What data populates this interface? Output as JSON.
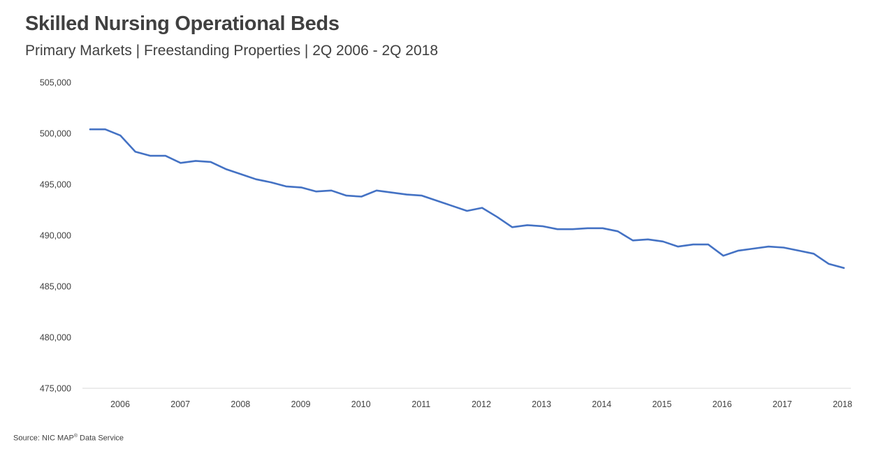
{
  "chart_data": {
    "type": "line",
    "title": "Skilled Nursing Operational Beds",
    "subtitle": "Primary Markets | Freestanding Properties | 2Q 2006 - 2Q 2018",
    "xlabel": "",
    "ylabel": "",
    "ylim": [
      475000,
      505000
    ],
    "yticks": [
      "475,000",
      "480,000",
      "485,000",
      "490,000",
      "495,000",
      "500,000",
      "505,000"
    ],
    "ytick_values": [
      475000,
      480000,
      485000,
      490000,
      495000,
      500000,
      505000
    ],
    "xticks": [
      "2006",
      "2007",
      "2008",
      "2009",
      "2010",
      "2011",
      "2012",
      "2013",
      "2014",
      "2015",
      "2016",
      "2017",
      "2018"
    ],
    "grid": false,
    "legend": "none",
    "line_color": "#4472C4",
    "series": [
      {
        "values": [
          500400,
          500400,
          499800,
          498200,
          497800,
          497800,
          497100,
          497300,
          497200,
          496500,
          496000,
          495500,
          495200,
          494800,
          494700,
          494300,
          494400,
          493900,
          493800,
          494400,
          494200,
          494000,
          493900,
          493400,
          492900,
          492400,
          492700,
          491800,
          490800,
          491000,
          490900,
          490600,
          490600,
          490700,
          490700,
          490400,
          489500,
          489600,
          489400,
          488900,
          489100,
          489100,
          488000,
          488500,
          488700,
          488900,
          488800,
          488500,
          488200,
          487200,
          486800
        ]
      }
    ]
  },
  "source": {
    "prefix": "Source:  NIC MAP",
    "reg": "®",
    "suffix": " Data  Service"
  }
}
